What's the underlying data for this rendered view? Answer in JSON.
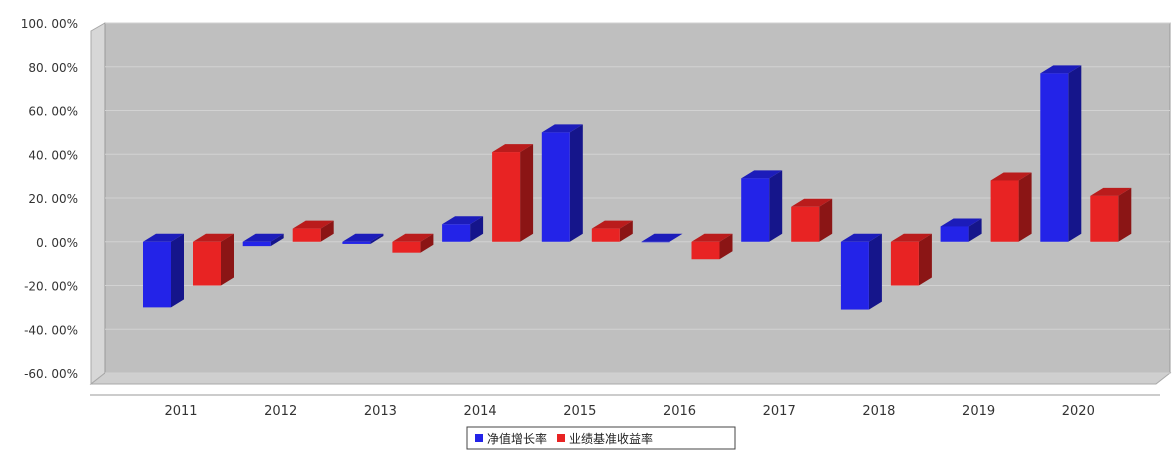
{
  "chart_data": {
    "type": "bar",
    "title": "",
    "xlabel": "",
    "ylabel": "",
    "categories": [
      "2011",
      "2012",
      "2013",
      "2014",
      "2015",
      "2016",
      "2017",
      "2018",
      "2019",
      "2020"
    ],
    "y_ticks": [
      "-60. 00%",
      "-40. 00%",
      "-20. 00%",
      "0. 00%",
      "20. 00%",
      "40. 00%",
      "60. 00%",
      "80. 00%",
      "100. 00%"
    ],
    "ylim": [
      -60,
      100
    ],
    "grid": true,
    "legend_position": "bottom",
    "series": [
      {
        "name": "净值增长率",
        "color": "#2323e8",
        "values": [
          -30,
          -2,
          -1,
          8,
          50,
          0,
          29,
          -31,
          7,
          77
        ]
      },
      {
        "name": "业绩基准收益率",
        "color": "#e82323",
        "values": [
          -20,
          6,
          -5,
          41,
          6,
          -8,
          16,
          -20,
          28,
          21
        ]
      }
    ]
  }
}
